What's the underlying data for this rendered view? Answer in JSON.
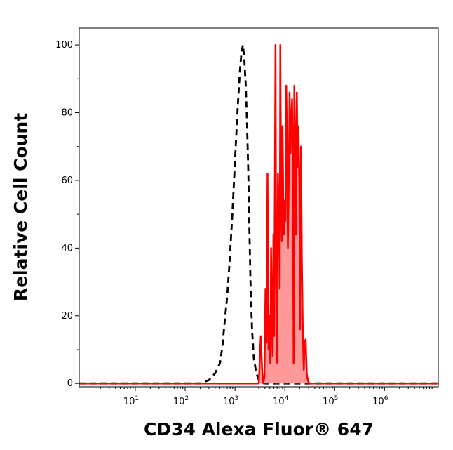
{
  "chart_data": {
    "type": "area",
    "title": "",
    "xlabel": "CD34 Alexa Fluor® 647",
    "ylabel": "Relative Cell Count",
    "xscale": "log",
    "xlim": [
      0.75,
      12000000
    ],
    "ylim": [
      -1,
      105
    ],
    "grid": false,
    "x_ticks": [
      {
        "value": 10,
        "base": "10",
        "exp": "1"
      },
      {
        "value": 100,
        "base": "10",
        "exp": "2"
      },
      {
        "value": 1000,
        "base": "10",
        "exp": "3"
      },
      {
        "value": 10000,
        "base": "10",
        "exp": "4"
      },
      {
        "value": 100000,
        "base": "10",
        "exp": "5"
      },
      {
        "value": 1000000,
        "base": "10",
        "exp": "6"
      }
    ],
    "y_ticks": [
      0,
      20,
      40,
      60,
      80,
      100
    ],
    "colors": {
      "control": "#000000",
      "sample": "#ff0000",
      "sample_fill": "#ff9999"
    },
    "series": [
      {
        "style": "dashed-outline",
        "color": "#000000",
        "x": [
          0.75,
          200,
          300,
          400,
          500,
          560,
          620,
          700,
          780,
          870,
          960,
          1050,
          1150,
          1250,
          1350,
          1450,
          1550,
          1650,
          1750,
          1850,
          1950,
          2050,
          2200,
          2400,
          2700,
          3000,
          3400,
          4000,
          12000000
        ],
        "values": [
          0,
          0,
          1,
          3,
          6,
          11,
          18,
          26,
          36,
          48,
          60,
          72,
          83,
          92,
          98,
          100,
          95,
          88,
          76,
          62,
          45,
          30,
          16,
          7,
          3,
          1,
          0.3,
          0,
          0
        ]
      },
      {
        "style": "filled",
        "color": "#ff0000",
        "x": [
          0.75,
          3000,
          3300,
          3500,
          3700,
          3900,
          4100,
          4300,
          4500,
          4700,
          4900,
          5100,
          5300,
          5500,
          5700,
          5900,
          6100,
          6300,
          6500,
          6700,
          6900,
          7100,
          7300,
          7500,
          7700,
          7900,
          8100,
          8400,
          8700,
          9000,
          9300,
          9600,
          9900,
          10300,
          10700,
          11100,
          11500,
          12000,
          12500,
          13000,
          13500,
          14000,
          14500,
          15000,
          15500,
          16000,
          16700,
          17400,
          18100,
          18800,
          19500,
          20300,
          21100,
          22000,
          23000,
          24000,
          25000,
          26200,
          27500,
          29000,
          30500,
          32000,
          34000,
          36000,
          38000,
          40000,
          42000,
          44000,
          46000,
          12000000
        ],
        "values": [
          0,
          0,
          14,
          4,
          0,
          2,
          28,
          12,
          62,
          10,
          20,
          6,
          40,
          18,
          8,
          44,
          14,
          58,
          100,
          36,
          6,
          30,
          62,
          50,
          44,
          28,
          100,
          62,
          42,
          76,
          56,
          44,
          54,
          48,
          88,
          70,
          40,
          60,
          86,
          68,
          78,
          84,
          66,
          6,
          88,
          74,
          44,
          86,
          64,
          76,
          60,
          16,
          70,
          36,
          14,
          4,
          12,
          13,
          3,
          1,
          0,
          0,
          0,
          0,
          0,
          0,
          0,
          0,
          0,
          0
        ]
      }
    ]
  }
}
